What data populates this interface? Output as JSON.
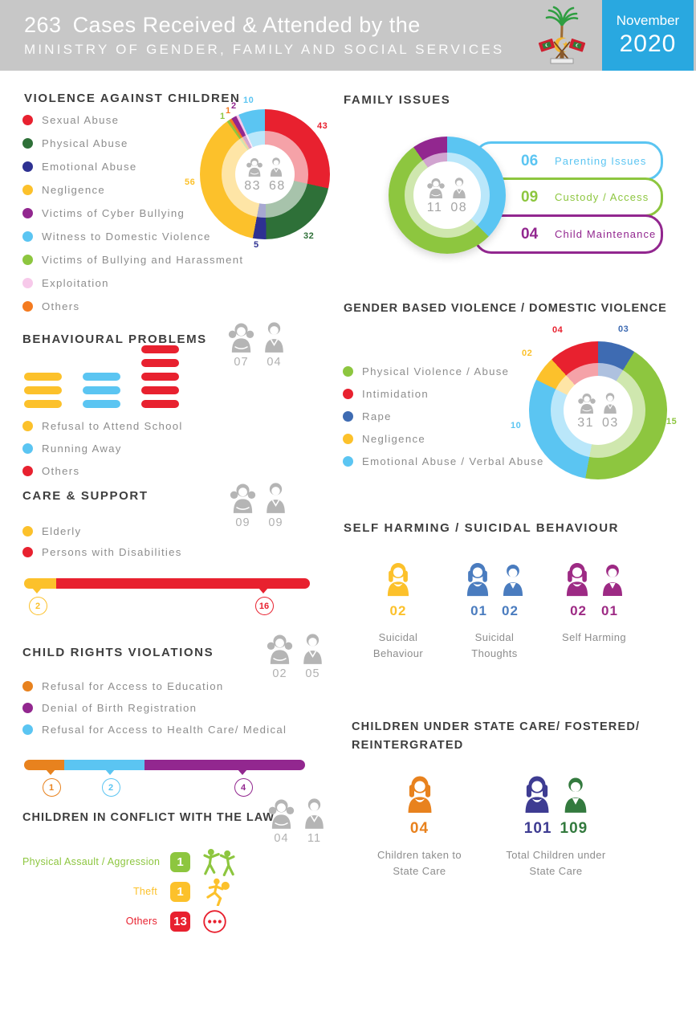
{
  "header": {
    "case_count": "263",
    "title": "Cases Received & Attended by the",
    "subtitle": "MINISTRY OF GENDER, FAMILY AND SOCIAL SERVICES",
    "month": "November",
    "year": "2020",
    "emblem": "maldives-national-emblem",
    "colors": {
      "bar_bg": "#c7c7c7",
      "month_box": "#29a8e0"
    }
  },
  "chart_data": [
    {
      "id": "violence_against_children",
      "type": "pie",
      "title": "VIOLENCE AGAINST CHILDREN",
      "center_totals": {
        "left": "83",
        "right": "68"
      },
      "slices": [
        {
          "label": "Sexual Abuse",
          "value": 43,
          "color": "#e8212f",
          "callout": "43"
        },
        {
          "label": "Physical Abuse",
          "value": 32,
          "color": "#2e7038",
          "callout": "32"
        },
        {
          "label": "Emotional Abuse",
          "value": 5,
          "color": "#2e3192",
          "callout": "5"
        },
        {
          "label": "Negligence",
          "value": 56,
          "color": "#fcc12b",
          "callout": "56"
        },
        {
          "label": "Victims of Cyber Bullying",
          "value": 2,
          "color": "#92278f",
          "callout": "2"
        },
        {
          "label": "Witness to Domestic Violence",
          "value": 10,
          "color": "#5bc5f2",
          "callout": "10"
        },
        {
          "label": "Victims of Bullying and Harassment",
          "value": 1,
          "color": "#8dc63f",
          "callout": "1"
        },
        {
          "label": "Exploitation",
          "value": 1,
          "color": "#f7c9ea",
          "callout": ""
        },
        {
          "label": "Others",
          "value": 1,
          "color": "#f47b20",
          "callout": "1"
        }
      ],
      "clockwise_order": [
        0,
        1,
        2,
        3,
        6,
        8,
        4,
        7,
        5
      ],
      "legend_position": "left"
    },
    {
      "id": "family_issues",
      "type": "pie",
      "title": "FAMILY ISSUES",
      "center_totals": {
        "left": "11",
        "right": "08"
      },
      "slices": [
        {
          "label": "Parenting Issues",
          "num": "06",
          "value": 6,
          "color": "#5bc5f2"
        },
        {
          "label": "Custody / Access",
          "num": "09",
          "value": 9,
          "color": "#8dc63f"
        },
        {
          "label": "Child Maintenance",
          "num": "04",
          "value": 4,
          "color": "#92278f"
        }
      ],
      "clockwise_order": [
        0,
        1,
        2
      ]
    },
    {
      "id": "behavioural_problems",
      "type": "bar",
      "title": "BEHAVIOURAL PROBLEMS",
      "totals": {
        "left": "07",
        "right": "04"
      },
      "categories": [
        "Refusal to Attend School",
        "Running Away",
        "Others"
      ],
      "values": [
        3,
        3,
        5
      ],
      "colors": [
        "#fcc12b",
        "#5bc5f2",
        "#e8212f"
      ]
    },
    {
      "id": "gender_based_violence",
      "type": "pie",
      "title": "GENDER BASED VIOLENCE / DOMESTIC VIOLENCE",
      "center_totals": {
        "left": "31",
        "right": "03"
      },
      "slices": [
        {
          "label": "Physical Violence / Abuse",
          "value": 15,
          "color": "#8dc63f",
          "callout": "15"
        },
        {
          "label": "Intimidation",
          "value": 4,
          "color": "#e8212f",
          "callout": "04"
        },
        {
          "label": "Rape",
          "value": 3,
          "color": "#3e6bb2",
          "callout": "03"
        },
        {
          "label": "Negligence",
          "value": 2,
          "color": "#fcc12b",
          "callout": "02"
        },
        {
          "label": "Emotional Abuse / Verbal Abuse",
          "value": 10,
          "color": "#5bc5f2",
          "callout": "10"
        }
      ],
      "clockwise_order": [
        2,
        0,
        4,
        3,
        1
      ]
    },
    {
      "id": "care_support",
      "type": "bar",
      "title": "CARE & SUPPORT",
      "totals": {
        "left": "09",
        "right": "09"
      },
      "categories": [
        "Elderly",
        "Persons with Disabilities"
      ],
      "values": [
        2,
        16
      ],
      "colors": [
        "#fcc12b",
        "#e8212f"
      ],
      "marker_labels": [
        "2",
        "16"
      ]
    },
    {
      "id": "self_harming",
      "type": "pictogram",
      "title": "SELF HARMING / SUICIDAL BEHAVIOUR",
      "groups": [
        {
          "label": "Suicidal Behaviour",
          "color": "#fcc12b",
          "female": "02",
          "male": ""
        },
        {
          "label": "Suicidal Thoughts",
          "color": "#4a7cbf",
          "female": "01",
          "male": "02"
        },
        {
          "label": "Self Harming",
          "color": "#9d2a84",
          "female": "02",
          "male": "01"
        }
      ]
    },
    {
      "id": "child_rights_violations",
      "type": "bar",
      "title": "CHILD RIGHTS VIOLATIONS",
      "totals": {
        "left": "02",
        "right": "05"
      },
      "categories": [
        "Refusal for Access to Education",
        "Denial of Birth Registration",
        "Refusal for Access to Health Care/ Medical"
      ],
      "values": [
        1,
        4,
        2
      ],
      "colors": [
        "#e8821e",
        "#92278f",
        "#5bc5f2"
      ],
      "bar_order": [
        0,
        2,
        1
      ],
      "marker_labels": [
        "1",
        "2",
        "4"
      ]
    },
    {
      "id": "children_under_state_care",
      "type": "pictogram",
      "title": "CHILDREN UNDER STATE CARE/ FOSTERED/ REINTERGRATED",
      "groups": [
        {
          "label": "Children taken to State Care",
          "value": "04",
          "color": "#e8821e"
        },
        {
          "label": "Total Children under State Care",
          "female": "101",
          "female_color": "#3e3c92",
          "male": "109",
          "male_color": "#337a3e"
        }
      ]
    },
    {
      "id": "children_in_conflict_with_the_law",
      "type": "pictogram",
      "title": "CHILDREN IN CONFLICT WITH THE LAW",
      "totals": {
        "left": "04",
        "right": "11"
      },
      "rows": [
        {
          "label": "Physical Assault / Aggression",
          "value": "1",
          "color": "#8dc63f",
          "icon": "fight-icon"
        },
        {
          "label": "Theft",
          "value": "1",
          "color": "#fcc12b",
          "icon": "theft-icon"
        },
        {
          "label": "Others",
          "value": "13",
          "color": "#e8212f",
          "icon": "more-dots-icon"
        }
      ]
    }
  ]
}
